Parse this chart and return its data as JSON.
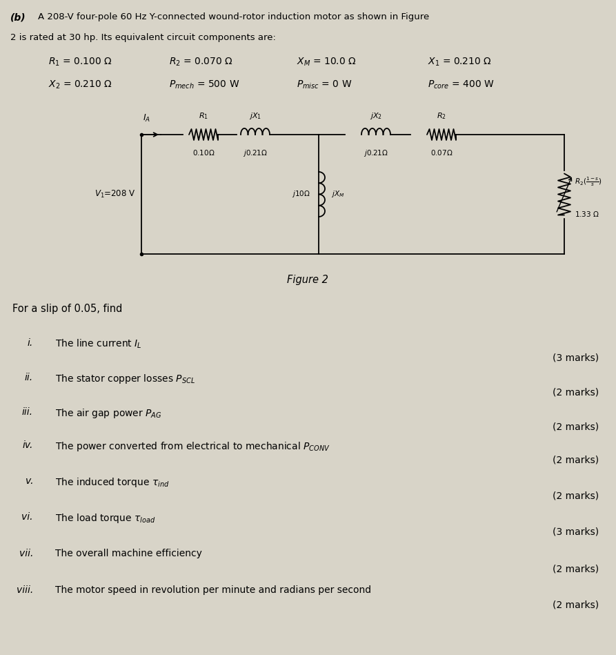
{
  "background_color": "#d8d4c8",
  "title_part": "(b)",
  "title_text": "A 208-V four-pole 60 Hz Y-connected wound-rotor induction motor as shown in Figure",
  "title_text2": "2 is rated at 30 hp. Its equivalent circuit components are:",
  "figure_label": "Figure 2",
  "slip_text": "For a slip of 0.05, find",
  "param_rows": [
    [
      "R_1=0.100\\,\\Omega",
      "R_2=0.070\\,\\Omega",
      "X_M=10.0\\,\\Omega",
      "X_1=0.210\\,\\Omega"
    ],
    [
      "X_2=0.210\\,\\Omega",
      "P_{mech}=500\\,W",
      "P_{misc}=0\\,W",
      "P_{core}=400\\,W"
    ]
  ],
  "q_nums": [
    "i.",
    "ii.",
    "iii.",
    "iv.",
    "v.",
    "vi.",
    "vii.",
    "viii."
  ],
  "q_texts": [
    "The line current ",
    "The stator copper losses ",
    "The air gap power ",
    "The power converted from electrical to mechanical ",
    "The induced torque ",
    "The load torque ",
    "The overall machine efficiency",
    "The motor speed in revolution per minute and radians per second"
  ],
  "q_italics": [
    "I_L",
    "P_{SCL}",
    "P_{AG}",
    "P_{CONV}",
    "\\tau_{ind}",
    "\\tau_{load}",
    "",
    ""
  ],
  "q_marks": [
    "(3 marks)",
    "(2 marks)",
    "(2 marks)",
    "(2 marks)",
    "(2 marks)",
    "(3 marks)",
    "(2 marks)",
    "(2 marks)"
  ]
}
